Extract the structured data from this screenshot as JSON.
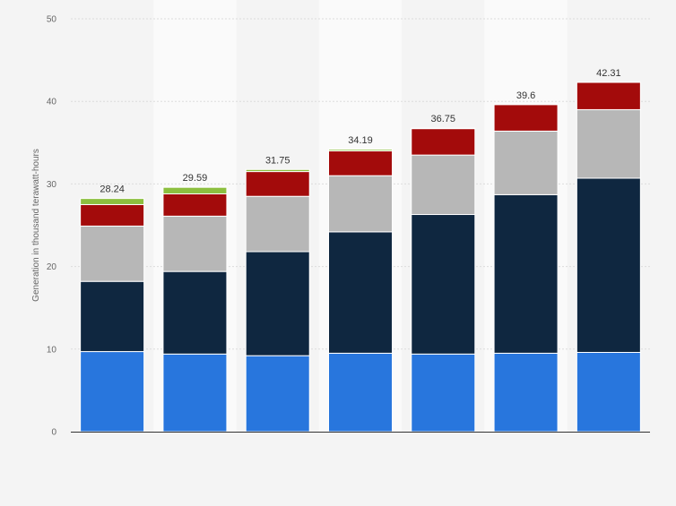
{
  "chart_data": {
    "type": "bar",
    "stacked": true,
    "title": "",
    "xlabel": "",
    "ylabel": "Generation in thousand terawatt-hours",
    "ylim": [
      0,
      50
    ],
    "yticks": [
      0,
      10,
      20,
      30,
      40,
      50
    ],
    "grid": true,
    "legend": "none",
    "categories": [
      "",
      "",
      "",
      "",
      "",
      "",
      ""
    ],
    "series": [
      {
        "color": "#2876dd",
        "values": [
          9.7,
          9.4,
          9.2,
          9.5,
          9.4,
          9.5,
          9.6
        ]
      },
      {
        "color": "#0f2740",
        "values": [
          8.5,
          10.0,
          12.6,
          14.7,
          16.9,
          19.2,
          21.1
        ]
      },
      {
        "color": "#b7b7b7",
        "values": [
          6.7,
          6.7,
          6.7,
          6.8,
          7.2,
          7.7,
          8.3
        ]
      },
      {
        "color": "#a30b0b",
        "values": [
          2.6,
          2.7,
          3.0,
          3.0,
          3.2,
          3.2,
          3.3
        ]
      },
      {
        "color": "#8cbf3f",
        "values": [
          0.74,
          0.79,
          0.25,
          0.19,
          0.05,
          0,
          0
        ]
      }
    ],
    "totals": [
      "28.24",
      "29.59",
      "31.75",
      "34.19",
      "36.75",
      "39.6",
      "42.31"
    ]
  }
}
